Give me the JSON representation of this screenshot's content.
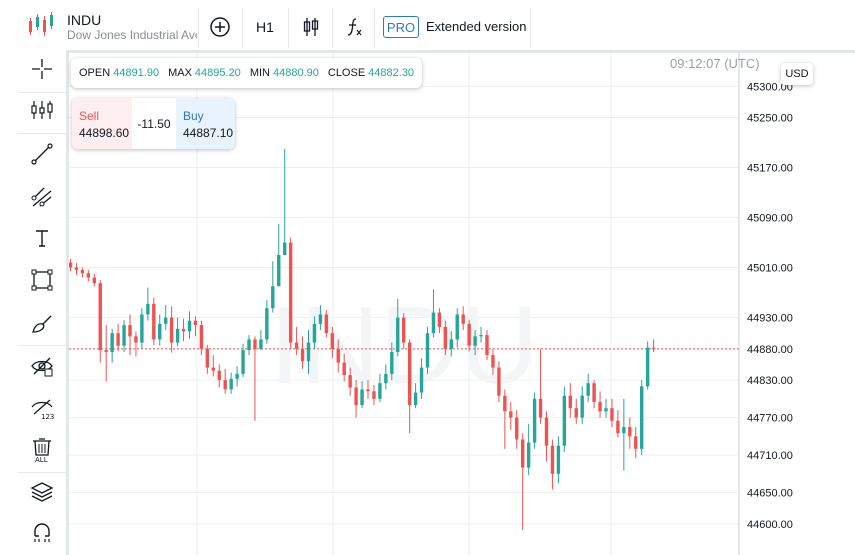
{
  "header": {
    "symbol": "INDU",
    "description": "Dow Jones Industrial Average",
    "timeframe": "H1",
    "pro_badge": "PRO",
    "extended_label": "Extended version"
  },
  "ohlc": {
    "open_label": "OPEN",
    "open": "44891.90",
    "max_label": "MAX",
    "max": "44895.20",
    "min_label": "MIN",
    "min": "44880.90",
    "close_label": "CLOSE",
    "close": "44882.30"
  },
  "trade": {
    "sell_label": "Sell",
    "sell_price": "44898.60",
    "spread": "-11.50",
    "buy_label": "Buy",
    "buy_price": "44887.10"
  },
  "clock": "09:12:07 (UTC)",
  "currency": "USD",
  "watermark": "INDU",
  "left_toolbar": [
    "crosshair-icon",
    "indicators-icon",
    "trendline-icon",
    "fib-icon",
    "text-icon",
    "rectangle-icon",
    "brush-icon",
    "hide-drawings-icon",
    "hide-indicators-icon",
    "delete-all-icon",
    "layers-icon",
    "magnet-icon"
  ],
  "colors": {
    "up": "#26a69a",
    "down": "#ef5350",
    "accent": "#2a7bc6",
    "grid": "#eceff2"
  },
  "chart_data": {
    "type": "candlestick",
    "symbol": "INDU",
    "y_ticks": [
      45300.0,
      45250.0,
      45170.0,
      45090.0,
      45010.0,
      44930.0,
      44880.0,
      44830.0,
      44770.0,
      44710.0,
      44650.0,
      44600.0
    ],
    "ylim": [
      44555,
      45358
    ],
    "current_price": 44880.0,
    "candles": [
      [
        45018,
        45010,
        45024,
        45004
      ],
      [
        45010,
        45006,
        45017,
        44998
      ],
      [
        45006,
        45001,
        45010,
        44994
      ],
      [
        45001,
        44994,
        45006,
        44988
      ],
      [
        44994,
        44985,
        45000,
        44980
      ],
      [
        44985,
        44878,
        44990,
        44858
      ],
      [
        44878,
        44875,
        44918,
        44828
      ],
      [
        44875,
        44905,
        44912,
        44858
      ],
      [
        44905,
        44885,
        44920,
        44876
      ],
      [
        44885,
        44918,
        44926,
        44875
      ],
      [
        44918,
        44900,
        44935,
        44870
      ],
      [
        44900,
        44890,
        44908,
        44868
      ],
      [
        44890,
        44935,
        44945,
        44880
      ],
      [
        44935,
        44952,
        44978,
        44925
      ],
      [
        44952,
        44895,
        44962,
        44886
      ],
      [
        44895,
        44920,
        44935,
        44885
      ],
      [
        44920,
        44930,
        44950,
        44910
      ],
      [
        44930,
        44890,
        44948,
        44874
      ],
      [
        44890,
        44912,
        44930,
        44884
      ],
      [
        44912,
        44908,
        44928,
        44892
      ],
      [
        44908,
        44925,
        44940,
        44896
      ],
      [
        44925,
        44918,
        44932,
        44900
      ],
      [
        44918,
        44880,
        44925,
        44870
      ],
      [
        44880,
        44850,
        44886,
        44840
      ],
      [
        44850,
        44845,
        44870,
        44836
      ],
      [
        44845,
        44830,
        44855,
        44818
      ],
      [
        44830,
        44815,
        44848,
        44808
      ],
      [
        44815,
        44832,
        44842,
        44808
      ],
      [
        44832,
        44840,
        44852,
        44820
      ],
      [
        44840,
        44878,
        44888,
        44835
      ],
      [
        44878,
        44895,
        44902,
        44870
      ],
      [
        44895,
        44880,
        44900,
        44765
      ],
      [
        44880,
        44895,
        44910,
        44878
      ],
      [
        44895,
        44945,
        44958,
        44888
      ],
      [
        44945,
        44980,
        45020,
        44938
      ],
      [
        44980,
        45030,
        45080,
        45020
      ],
      [
        45030,
        45050,
        45200,
        45030
      ],
      [
        45050,
        44890,
        45058,
        44880
      ],
      [
        44890,
        44880,
        44915,
        44870
      ],
      [
        44880,
        44860,
        44900,
        44848
      ],
      [
        44860,
        44890,
        44910,
        44840
      ],
      [
        44890,
        44920,
        44932,
        44880
      ],
      [
        44920,
        44935,
        44950,
        44910
      ],
      [
        44935,
        44905,
        44942,
        44898
      ],
      [
        44905,
        44880,
        44915,
        44865
      ],
      [
        44880,
        44858,
        44895,
        44842
      ],
      [
        44858,
        44838,
        44872,
        44828
      ],
      [
        44838,
        44818,
        44850,
        44805
      ],
      [
        44818,
        44790,
        44830,
        44770
      ],
      [
        44790,
        44815,
        44828,
        44785
      ],
      [
        44815,
        44812,
        44830,
        44800
      ],
      [
        44812,
        44800,
        44822,
        44790
      ],
      [
        44800,
        44825,
        44840,
        44795
      ],
      [
        44825,
        44840,
        44855,
        44815
      ],
      [
        44840,
        44875,
        44890,
        44830
      ],
      [
        44875,
        44930,
        44960,
        44868
      ],
      [
        44930,
        44890,
        44937,
        44880
      ],
      [
        44890,
        44790,
        44895,
        44745
      ],
      [
        44790,
        44810,
        44825,
        44785
      ],
      [
        44810,
        44850,
        44865,
        44800
      ],
      [
        44850,
        44905,
        44915,
        44840
      ],
      [
        44905,
        44938,
        44975,
        44898
      ],
      [
        44938,
        44915,
        44945,
        44905
      ],
      [
        44915,
        44880,
        44925,
        44870
      ],
      [
        44880,
        44895,
        44908,
        44868
      ],
      [
        44895,
        44935,
        44945,
        44882
      ],
      [
        44935,
        44920,
        44948,
        44910
      ],
      [
        44920,
        44885,
        44926,
        44876
      ],
      [
        44885,
        44900,
        44910,
        44870
      ],
      [
        44900,
        44902,
        44915,
        44890
      ],
      [
        44902,
        44870,
        44910,
        44862
      ],
      [
        44870,
        44850,
        44880,
        44838
      ],
      [
        44850,
        44805,
        44860,
        44795
      ],
      [
        44805,
        44780,
        44815,
        44720
      ],
      [
        44780,
        44770,
        44795,
        44750
      ],
      [
        44770,
        44735,
        44782,
        44720
      ],
      [
        44735,
        44690,
        44745,
        44590
      ],
      [
        44690,
        44730,
        44760,
        44678
      ],
      [
        44730,
        44800,
        44810,
        44720
      ],
      [
        44800,
        44770,
        44880,
        44760
      ],
      [
        44770,
        44725,
        44780,
        44700
      ],
      [
        44725,
        44680,
        44735,
        44655
      ],
      [
        44680,
        44725,
        44740,
        44665
      ],
      [
        44725,
        44805,
        44820,
        44715
      ],
      [
        44805,
        44785,
        44825,
        44770
      ],
      [
        44785,
        44770,
        44800,
        44760
      ],
      [
        44770,
        44805,
        44820,
        44760
      ],
      [
        44805,
        44825,
        44840,
        44795
      ],
      [
        44825,
        44795,
        44830,
        44785
      ],
      [
        44795,
        44780,
        44812,
        44770
      ],
      [
        44780,
        44785,
        44800,
        44770
      ],
      [
        44785,
        44765,
        44800,
        44755
      ],
      [
        44765,
        44745,
        44782,
        44738
      ],
      [
        44745,
        44755,
        44800,
        44685
      ],
      [
        44755,
        44740,
        44770,
        44720
      ],
      [
        44740,
        44720,
        44755,
        44705
      ],
      [
        44720,
        44820,
        44830,
        44710
      ],
      [
        44820,
        44882,
        44892,
        44815
      ],
      [
        44882,
        44880,
        44895,
        44875
      ]
    ]
  }
}
